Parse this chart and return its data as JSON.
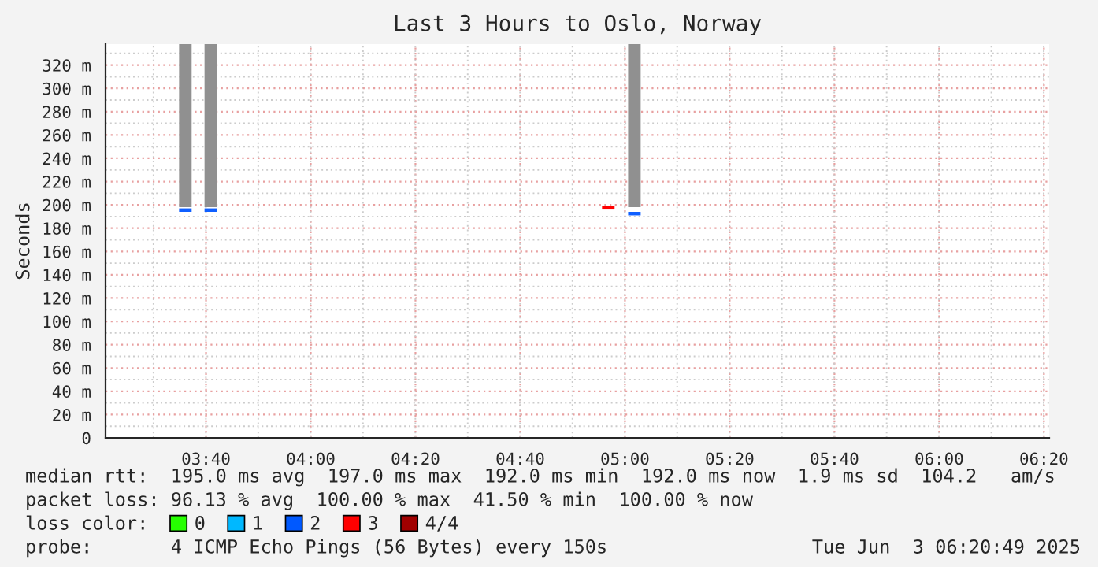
{
  "chart_data": {
    "type": "bar",
    "title": "Last 3 Hours to Oslo, Norway",
    "ylabel": "Seconds",
    "x": [
      3.601,
      3.682,
      4.947,
      5.03
    ],
    "series": [
      {
        "color": "#909090",
        "base": [
          198,
          198,
          null,
          198
        ],
        "values": [
          140,
          140,
          null,
          140
        ]
      },
      {
        "base": [
          194,
          194,
          196,
          191
        ],
        "values": [
          3,
          3,
          3,
          3
        ],
        "colors": [
          "#0f5fff",
          "#0f5fff",
          "#ff0000",
          "#0f5fff"
        ]
      },
      {
        "name": "0",
        "color": "#26ff00",
        "values": [
          null,
          null,
          null,
          null
        ]
      },
      {
        "name": "1",
        "color": "#00b8ff",
        "values": [
          null,
          null,
          null,
          null
        ]
      },
      {
        "name": "2",
        "color": "#0059ff",
        "values": [
          null,
          null,
          null,
          null
        ]
      },
      {
        "name": "3",
        "color": "#ff0000",
        "values": [
          null,
          null,
          null,
          null
        ]
      },
      {
        "name": "4/4",
        "color": "#a10000",
        "values": [
          null,
          null,
          null,
          null
        ]
      }
    ],
    "xlim": [
      3.347,
      6.35
    ],
    "ylim": [
      0,
      338
    ],
    "xticks": [
      {
        "value": 3.6667,
        "label": "03:40"
      },
      {
        "value": 4.0,
        "label": "04:00"
      },
      {
        "value": 4.3333,
        "label": "04:20"
      },
      {
        "value": 4.6667,
        "label": "04:40"
      },
      {
        "value": 5.0,
        "label": "05:00"
      },
      {
        "value": 5.3333,
        "label": "05:20"
      },
      {
        "value": 5.6667,
        "label": "05:40"
      },
      {
        "value": 6.0,
        "label": "06:00"
      },
      {
        "value": 6.3333,
        "label": "06:20"
      }
    ],
    "yticks": [
      0,
      {
        "value": 20,
        "label": "20 m"
      },
      {
        "value": 40,
        "label": "40 m"
      },
      {
        "value": 60,
        "label": "60 m"
      },
      {
        "value": 80,
        "label": "80 m"
      },
      {
        "value": 100,
        "label": "100 m"
      },
      {
        "value": 120,
        "label": "120 m"
      },
      {
        "value": 140,
        "label": "140 m"
      },
      {
        "value": 160,
        "label": "160 m"
      },
      {
        "value": 180,
        "label": "180 m"
      },
      {
        "value": 200,
        "label": "200 m"
      },
      {
        "value": 220,
        "label": "220 m"
      },
      {
        "value": 240,
        "label": "240 m"
      },
      {
        "value": 260,
        "label": "260 m"
      },
      {
        "value": 280,
        "label": "280 m"
      },
      {
        "value": 300,
        "label": "300 m"
      },
      {
        "value": 320,
        "label": "320 m"
      }
    ],
    "grid": true,
    "legend": "bottom",
    "annotations": [
      "median rtt:  195.0 ms avg  197.0 ms max  192.0 ms min  192.0 ms now  1.9 ms sd  104.2   am/s",
      "packet loss: 96.13 % avg  100.00 % max  41.50 % min  100.00 % now",
      "loss color:",
      "probe:       4 ICMP Echo Pings (56 Bytes) every 150s",
      "Tue Jun  3 06:20:49 2025"
    ]
  }
}
